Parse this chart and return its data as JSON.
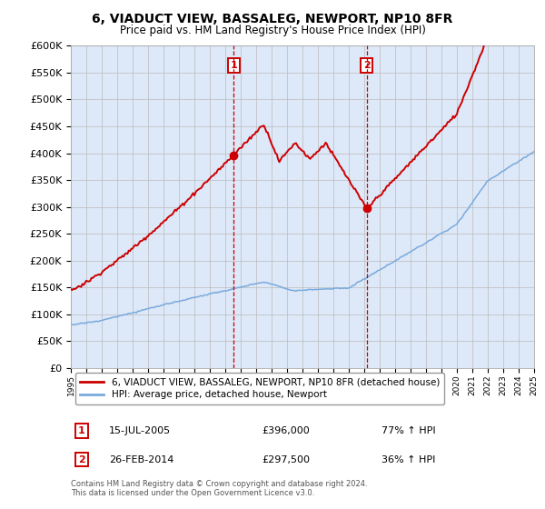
{
  "title": "6, VIADUCT VIEW, BASSALEG, NEWPORT, NP10 8FR",
  "subtitle": "Price paid vs. HM Land Registry's House Price Index (HPI)",
  "ylim": [
    0,
    600000
  ],
  "yticks": [
    0,
    50000,
    100000,
    150000,
    200000,
    250000,
    300000,
    350000,
    400000,
    450000,
    500000,
    550000,
    600000
  ],
  "background_color": "#ffffff",
  "plot_bg_color": "#dde8f8",
  "grid_color": "#bbbbbb",
  "hpi_color": "#7aaadd",
  "price_color": "#cc0000",
  "vline_color": "#cc0000",
  "sale1_x": 2005.54,
  "sale1_y": 396000,
  "sale2_x": 2014.16,
  "sale2_y": 297500,
  "legend_entries": [
    "6, VIADUCT VIEW, BASSALEG, NEWPORT, NP10 8FR (detached house)",
    "HPI: Average price, detached house, Newport"
  ],
  "annotation1_date": "15-JUL-2005",
  "annotation1_price": "£396,000",
  "annotation1_hpi": "77% ↑ HPI",
  "annotation2_date": "26-FEB-2014",
  "annotation2_price": "£297,500",
  "annotation2_hpi": "36% ↑ HPI",
  "footer": "Contains HM Land Registry data © Crown copyright and database right 2024.\nThis data is licensed under the Open Government Licence v3.0.",
  "xmin": 1995,
  "xmax": 2025
}
